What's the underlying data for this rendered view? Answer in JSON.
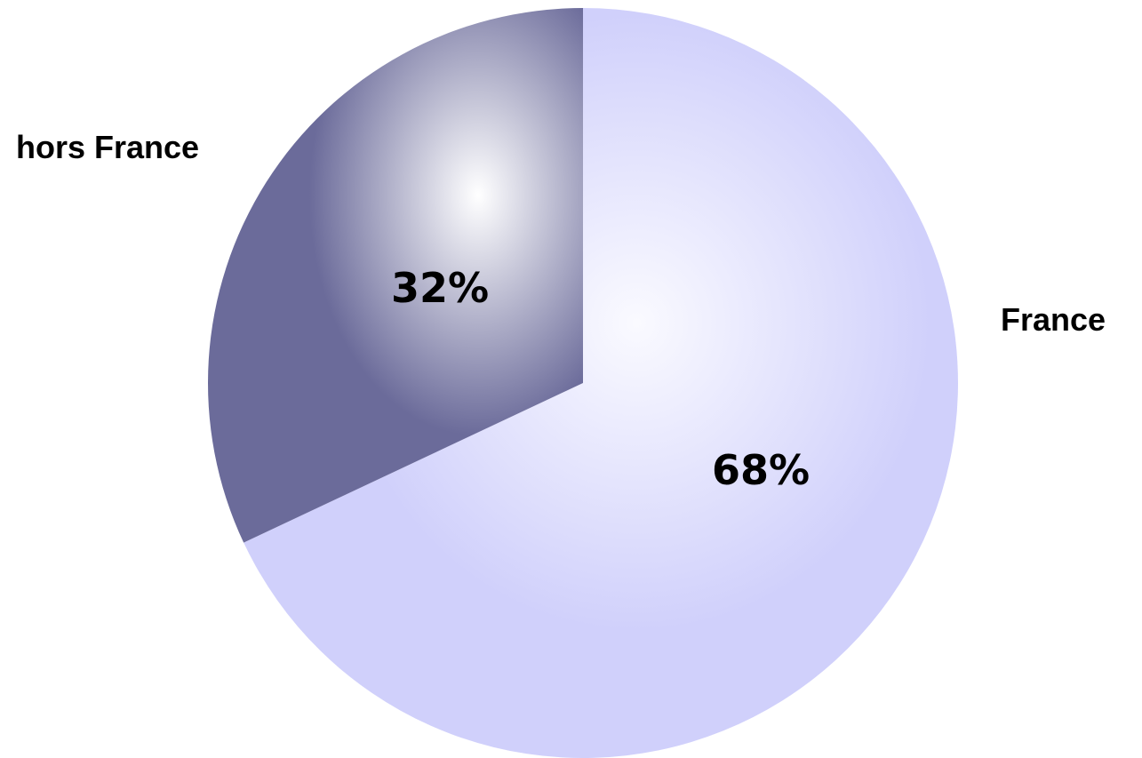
{
  "chart_data": {
    "type": "pie",
    "slices": [
      {
        "category": "France",
        "value": 68,
        "label": "68%",
        "color": "#d0d0fb",
        "highlight": "#fafaff"
      },
      {
        "category": "hors France",
        "value": 32,
        "label": "32%",
        "color": "#6b6b9a",
        "highlight": "#ffffff"
      }
    ],
    "start_angle_deg": 0,
    "direction": "clockwise",
    "legend": "none",
    "title": ""
  }
}
